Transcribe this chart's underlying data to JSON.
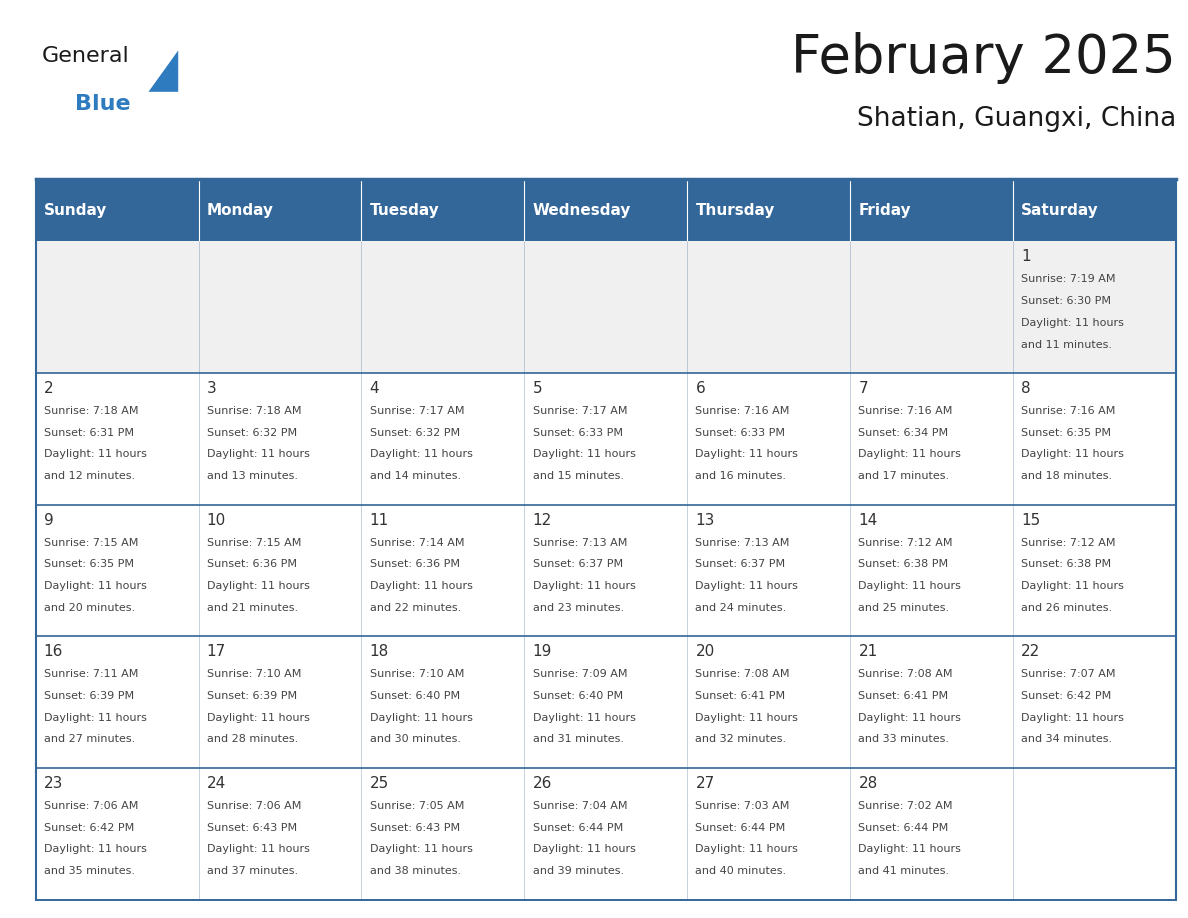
{
  "title": "February 2025",
  "subtitle": "Shatian, Guangxi, China",
  "days_of_week": [
    "Sunday",
    "Monday",
    "Tuesday",
    "Wednesday",
    "Thursday",
    "Friday",
    "Saturday"
  ],
  "header_bg": "#336699",
  "header_text_color": "#FFFFFF",
  "cell_bg_white": "#FFFFFF",
  "cell_bg_gray": "#F0F0F0",
  "border_color": "#336699",
  "text_color": "#444444",
  "day_num_color": "#333333",
  "title_color": "#1a1a1a",
  "general_color": "#1a1a1a",
  "blue_color": "#2E7BBF",
  "logo_text_general": "General",
  "logo_text_blue": "Blue",
  "weeks": [
    [
      {
        "day": null,
        "sunrise": null,
        "sunset": null,
        "daylight": null
      },
      {
        "day": null,
        "sunrise": null,
        "sunset": null,
        "daylight": null
      },
      {
        "day": null,
        "sunrise": null,
        "sunset": null,
        "daylight": null
      },
      {
        "day": null,
        "sunrise": null,
        "sunset": null,
        "daylight": null
      },
      {
        "day": null,
        "sunrise": null,
        "sunset": null,
        "daylight": null
      },
      {
        "day": null,
        "sunrise": null,
        "sunset": null,
        "daylight": null
      },
      {
        "day": 1,
        "sunrise": "7:19 AM",
        "sunset": "6:30 PM",
        "daylight": "11 hours and 11 minutes."
      }
    ],
    [
      {
        "day": 2,
        "sunrise": "7:18 AM",
        "sunset": "6:31 PM",
        "daylight": "11 hours and 12 minutes."
      },
      {
        "day": 3,
        "sunrise": "7:18 AM",
        "sunset": "6:32 PM",
        "daylight": "11 hours and 13 minutes."
      },
      {
        "day": 4,
        "sunrise": "7:17 AM",
        "sunset": "6:32 PM",
        "daylight": "11 hours and 14 minutes."
      },
      {
        "day": 5,
        "sunrise": "7:17 AM",
        "sunset": "6:33 PM",
        "daylight": "11 hours and 15 minutes."
      },
      {
        "day": 6,
        "sunrise": "7:16 AM",
        "sunset": "6:33 PM",
        "daylight": "11 hours and 16 minutes."
      },
      {
        "day": 7,
        "sunrise": "7:16 AM",
        "sunset": "6:34 PM",
        "daylight": "11 hours and 17 minutes."
      },
      {
        "day": 8,
        "sunrise": "7:16 AM",
        "sunset": "6:35 PM",
        "daylight": "11 hours and 18 minutes."
      }
    ],
    [
      {
        "day": 9,
        "sunrise": "7:15 AM",
        "sunset": "6:35 PM",
        "daylight": "11 hours and 20 minutes."
      },
      {
        "day": 10,
        "sunrise": "7:15 AM",
        "sunset": "6:36 PM",
        "daylight": "11 hours and 21 minutes."
      },
      {
        "day": 11,
        "sunrise": "7:14 AM",
        "sunset": "6:36 PM",
        "daylight": "11 hours and 22 minutes."
      },
      {
        "day": 12,
        "sunrise": "7:13 AM",
        "sunset": "6:37 PM",
        "daylight": "11 hours and 23 minutes."
      },
      {
        "day": 13,
        "sunrise": "7:13 AM",
        "sunset": "6:37 PM",
        "daylight": "11 hours and 24 minutes."
      },
      {
        "day": 14,
        "sunrise": "7:12 AM",
        "sunset": "6:38 PM",
        "daylight": "11 hours and 25 minutes."
      },
      {
        "day": 15,
        "sunrise": "7:12 AM",
        "sunset": "6:38 PM",
        "daylight": "11 hours and 26 minutes."
      }
    ],
    [
      {
        "day": 16,
        "sunrise": "7:11 AM",
        "sunset": "6:39 PM",
        "daylight": "11 hours and 27 minutes."
      },
      {
        "day": 17,
        "sunrise": "7:10 AM",
        "sunset": "6:39 PM",
        "daylight": "11 hours and 28 minutes."
      },
      {
        "day": 18,
        "sunrise": "7:10 AM",
        "sunset": "6:40 PM",
        "daylight": "11 hours and 30 minutes."
      },
      {
        "day": 19,
        "sunrise": "7:09 AM",
        "sunset": "6:40 PM",
        "daylight": "11 hours and 31 minutes."
      },
      {
        "day": 20,
        "sunrise": "7:08 AM",
        "sunset": "6:41 PM",
        "daylight": "11 hours and 32 minutes."
      },
      {
        "day": 21,
        "sunrise": "7:08 AM",
        "sunset": "6:41 PM",
        "daylight": "11 hours and 33 minutes."
      },
      {
        "day": 22,
        "sunrise": "7:07 AM",
        "sunset": "6:42 PM",
        "daylight": "11 hours and 34 minutes."
      }
    ],
    [
      {
        "day": 23,
        "sunrise": "7:06 AM",
        "sunset": "6:42 PM",
        "daylight": "11 hours and 35 minutes."
      },
      {
        "day": 24,
        "sunrise": "7:06 AM",
        "sunset": "6:43 PM",
        "daylight": "11 hours and 37 minutes."
      },
      {
        "day": 25,
        "sunrise": "7:05 AM",
        "sunset": "6:43 PM",
        "daylight": "11 hours and 38 minutes."
      },
      {
        "day": 26,
        "sunrise": "7:04 AM",
        "sunset": "6:44 PM",
        "daylight": "11 hours and 39 minutes."
      },
      {
        "day": 27,
        "sunrise": "7:03 AM",
        "sunset": "6:44 PM",
        "daylight": "11 hours and 40 minutes."
      },
      {
        "day": 28,
        "sunrise": "7:02 AM",
        "sunset": "6:44 PM",
        "daylight": "11 hours and 41 minutes."
      },
      {
        "day": null,
        "sunrise": null,
        "sunset": null,
        "daylight": null
      }
    ]
  ]
}
